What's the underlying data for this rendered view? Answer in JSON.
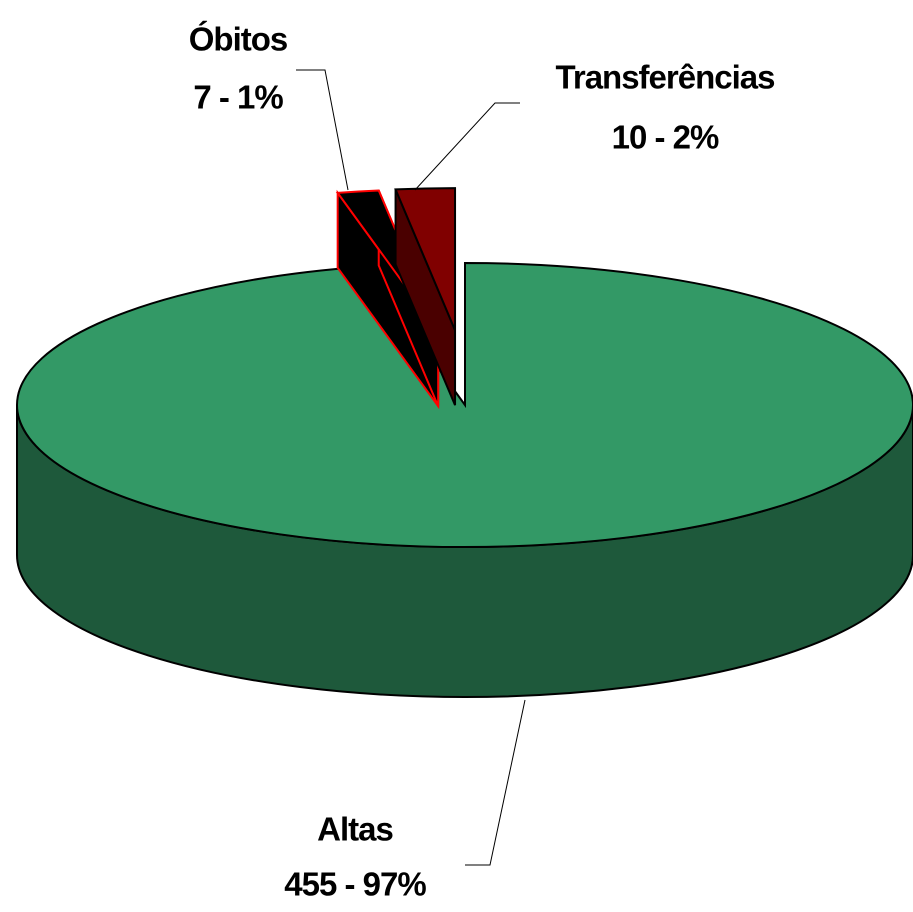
{
  "chart_data": {
    "type": "pie3d",
    "categories": [
      "Altas",
      "Óbitos",
      "Transferências"
    ],
    "values": [
      455,
      7,
      10
    ],
    "value_labels": [
      "455 - 97%",
      "7 - 1%",
      "10 - 2%"
    ],
    "colors": [
      "#339966",
      "#000000",
      "#800000"
    ],
    "edge_colors": [
      "#000000",
      "#ff0000",
      "#000000"
    ],
    "exploded": [
      false,
      true,
      true
    ]
  }
}
